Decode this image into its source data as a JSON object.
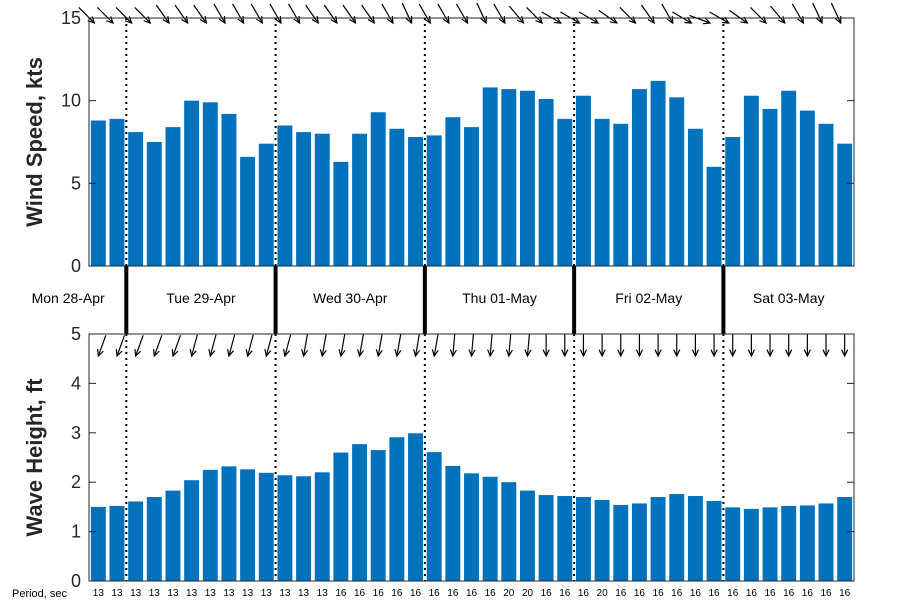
{
  "chart_data": [
    {
      "type": "bar",
      "ylabel": "Wind Speed, kts",
      "ylim": [
        0,
        15
      ],
      "yticks": [
        0,
        5,
        10,
        15
      ],
      "values": [
        8.8,
        8.9,
        8.1,
        7.5,
        8.4,
        10.0,
        9.9,
        9.2,
        6.6,
        7.4,
        8.5,
        8.1,
        8.0,
        6.3,
        8.0,
        9.3,
        8.3,
        7.8,
        7.9,
        9.0,
        8.4,
        10.8,
        10.7,
        10.6,
        10.1,
        8.9,
        10.3,
        8.9,
        8.6,
        10.7,
        11.2,
        10.2,
        8.3,
        6.0,
        7.8,
        10.3,
        9.5,
        10.6,
        9.4,
        8.6,
        7.4
      ],
      "direction_arrows_deg": [
        135,
        135,
        135,
        135,
        145,
        145,
        145,
        150,
        150,
        150,
        150,
        150,
        145,
        145,
        145,
        145,
        150,
        155,
        150,
        150,
        150,
        155,
        150,
        140,
        135,
        120,
        120,
        120,
        125,
        135,
        145,
        150,
        120,
        110,
        120,
        125,
        135,
        140,
        150,
        155,
        155
      ],
      "grid": false
    },
    {
      "type": "bar",
      "ylabel": "Wave Height, ft",
      "ylim": [
        0,
        5
      ],
      "yticks": [
        0,
        1,
        2,
        3,
        4,
        5
      ],
      "values": [
        1.5,
        1.52,
        1.61,
        1.7,
        1.83,
        2.04,
        2.25,
        2.32,
        2.26,
        2.19,
        2.14,
        2.12,
        2.2,
        2.6,
        2.77,
        2.65,
        2.91,
        2.99,
        2.61,
        2.33,
        2.18,
        2.11,
        2.0,
        1.83,
        1.74,
        1.72,
        1.7,
        1.64,
        1.54,
        1.57,
        1.7,
        1.76,
        1.72,
        1.62,
        1.49,
        1.46,
        1.49,
        1.52,
        1.53,
        1.57,
        1.7
      ],
      "direction_arrows_deg": [
        200,
        200,
        200,
        200,
        200,
        195,
        195,
        195,
        195,
        195,
        195,
        190,
        190,
        190,
        190,
        190,
        190,
        190,
        190,
        185,
        185,
        185,
        185,
        185,
        180,
        180,
        180,
        180,
        180,
        180,
        180,
        180,
        180,
        180,
        180,
        180,
        180,
        180,
        180,
        180,
        180
      ],
      "periods": [
        "13",
        "13",
        "13",
        "13",
        "13",
        "13",
        "13",
        "13",
        "13",
        "13",
        "13",
        "13",
        "13",
        "16",
        "16",
        "16",
        "16",
        "16",
        "16",
        "16",
        "16",
        "16",
        "20",
        "20",
        "16",
        "16",
        "16",
        "20",
        "16",
        "16",
        "16",
        "16",
        "16",
        "16",
        "16",
        "16",
        "16",
        "16",
        "16",
        "16",
        "16"
      ],
      "period_label": "Period, sec",
      "grid": false
    }
  ],
  "days": [
    "Mon 28-Apr",
    "Tue 29-Apr",
    "Wed 30-Apr",
    "Thu 01-May",
    "Fri 02-May",
    "Sat 03-May"
  ],
  "day_boundaries_after_index": [
    1.5,
    9.5,
    17.5,
    25.5,
    33.5
  ],
  "colors": {
    "bar": "#0072BD",
    "axis": "#262626"
  }
}
